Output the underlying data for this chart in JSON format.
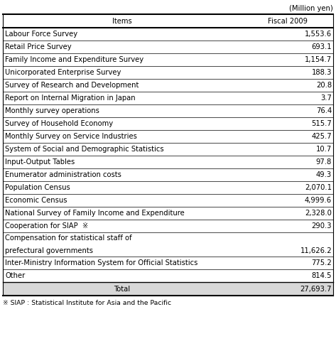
{
  "unit_label": "(Million yen)",
  "col_headers": [
    "Items",
    "Fiscal 2009"
  ],
  "rows": [
    [
      "Labour Force Survey",
      "1,553.6"
    ],
    [
      "Retail Price Survey",
      "693.1"
    ],
    [
      "Family Income and Expenditure Survey",
      "1,154.7"
    ],
    [
      "Unicorporated Enterprise Survey",
      "188.3"
    ],
    [
      "Survey of Research and Development",
      "20.8"
    ],
    [
      "Report on Internal Migration in Japan",
      "3.7"
    ],
    [
      "Monthly survey operations",
      "76.4"
    ],
    [
      "Survey of Household Economy",
      "515.7"
    ],
    [
      "Monthly Survey on Service Industries",
      "425.7"
    ],
    [
      "System of Social and Demographic Statistics",
      "10.7"
    ],
    [
      "Input-Output Tables",
      "97.8"
    ],
    [
      "Enumerator administration costs",
      "49.3"
    ],
    [
      "Population Census",
      "2,070.1"
    ],
    [
      "Economic Census",
      "4,999.6"
    ],
    [
      "National Survey of Family Income and Expenditure",
      "2,328.0"
    ],
    [
      "Cooperation for SIAP  ※",
      "290.3"
    ],
    [
      "Compensation for statistical staff of\nprefectural governments",
      "11,626.2"
    ],
    [
      "Inter-Ministry Information System for Official Statistics",
      "775.2"
    ],
    [
      "Other",
      "814.5"
    ]
  ],
  "total_row": [
    "Total",
    "27,693.7"
  ],
  "footnote": "※ SIAP : Statistical Institute for Asia and the Pacific",
  "bg_color": "#ffffff",
  "total_bg": "#d8d8d8",
  "line_color": "#000000",
  "font_size": 7.2,
  "font_family": "DejaVu Sans"
}
